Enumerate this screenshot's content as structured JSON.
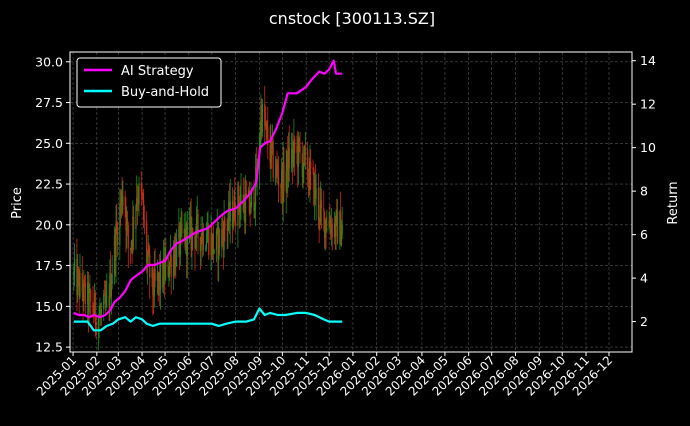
{
  "chart_data": {
    "type": "line",
    "title": "cnstock [300113.SZ]",
    "ylabel_left": "Price",
    "ylabel_right": "Return",
    "xlim": [
      "2024-12-28",
      "2026-12-31"
    ],
    "ylim_left": [
      12.2,
      30.6
    ],
    "ylim_right": [
      0.6,
      14.4
    ],
    "x_ticks": [
      "2025-01",
      "2025-02",
      "2025-03",
      "2025-04",
      "2025-05",
      "2025-06",
      "2025-07",
      "2025-08",
      "2025-09",
      "2025-10",
      "2025-11",
      "2025-12",
      "2026-01",
      "2026-02",
      "2026-03",
      "2026-04",
      "2026-05",
      "2026-06",
      "2026-07",
      "2026-08",
      "2026-09",
      "2026-10",
      "2026-11",
      "2026-12"
    ],
    "y_ticks_left": [
      12.5,
      15.0,
      17.5,
      20.0,
      22.5,
      25.0,
      27.5,
      30.0
    ],
    "y_ticks_right": [
      2,
      4,
      6,
      8,
      10,
      12,
      14
    ],
    "grid": true,
    "legend_position": "top-left",
    "series": [
      {
        "name": "AI Strategy",
        "axis": "right",
        "color": "#ff00ff",
        "points": [
          [
            "2025-01-02",
            2.4
          ],
          [
            "2025-01-08",
            2.3
          ],
          [
            "2025-01-15",
            2.3
          ],
          [
            "2025-01-22",
            2.2
          ],
          [
            "2025-01-28",
            2.3
          ],
          [
            "2025-02-05",
            2.2
          ],
          [
            "2025-02-12",
            2.3
          ],
          [
            "2025-02-18",
            2.5
          ],
          [
            "2025-02-24",
            2.9
          ],
          [
            "2025-03-03",
            3.1
          ],
          [
            "2025-03-10",
            3.4
          ],
          [
            "2025-03-17",
            3.9
          ],
          [
            "2025-03-24",
            4.1
          ],
          [
            "2025-04-01",
            4.3
          ],
          [
            "2025-04-09",
            4.6
          ],
          [
            "2025-04-17",
            4.6
          ],
          [
            "2025-04-24",
            4.7
          ],
          [
            "2025-05-01",
            4.8
          ],
          [
            "2025-05-09",
            5.3
          ],
          [
            "2025-05-16",
            5.6
          ],
          [
            "2025-05-23",
            5.7
          ],
          [
            "2025-06-01",
            5.9
          ],
          [
            "2025-06-10",
            6.1
          ],
          [
            "2025-06-18",
            6.2
          ],
          [
            "2025-06-26",
            6.3
          ],
          [
            "2025-07-05",
            6.6
          ],
          [
            "2025-07-14",
            6.9
          ],
          [
            "2025-07-22",
            7.1
          ],
          [
            "2025-08-01",
            7.2
          ],
          [
            "2025-08-10",
            7.5
          ],
          [
            "2025-08-20",
            7.9
          ],
          [
            "2025-08-28",
            8.4
          ],
          [
            "2025-09-02",
            10.0
          ],
          [
            "2025-09-08",
            10.2
          ],
          [
            "2025-09-15",
            10.3
          ],
          [
            "2025-09-22",
            10.8
          ],
          [
            "2025-10-01",
            11.6
          ],
          [
            "2025-10-08",
            12.5
          ],
          [
            "2025-10-20",
            12.5
          ],
          [
            "2025-11-01",
            12.8
          ],
          [
            "2025-11-10",
            13.2
          ],
          [
            "2025-11-18",
            13.5
          ],
          [
            "2025-11-25",
            13.4
          ],
          [
            "2025-12-01",
            13.6
          ],
          [
            "2025-12-07",
            14.0
          ],
          [
            "2025-12-10",
            13.4
          ],
          [
            "2025-12-18",
            13.4
          ]
        ]
      },
      {
        "name": "Buy-and-Hold",
        "axis": "right",
        "color": "#00ffff",
        "points": [
          [
            "2025-01-02",
            2.0
          ],
          [
            "2025-01-10",
            2.0
          ],
          [
            "2025-01-20",
            2.0
          ],
          [
            "2025-01-28",
            1.6
          ],
          [
            "2025-02-06",
            1.6
          ],
          [
            "2025-02-14",
            1.8
          ],
          [
            "2025-02-22",
            1.9
          ],
          [
            "2025-03-01",
            2.1
          ],
          [
            "2025-03-10",
            2.2
          ],
          [
            "2025-03-17",
            2.0
          ],
          [
            "2025-03-24",
            2.2
          ],
          [
            "2025-04-01",
            2.1
          ],
          [
            "2025-04-07",
            1.9
          ],
          [
            "2025-04-15",
            1.8
          ],
          [
            "2025-04-24",
            1.9
          ],
          [
            "2025-05-05",
            1.9
          ],
          [
            "2025-05-16",
            1.9
          ],
          [
            "2025-06-01",
            1.9
          ],
          [
            "2025-06-15",
            1.9
          ],
          [
            "2025-07-01",
            1.9
          ],
          [
            "2025-07-10",
            1.8
          ],
          [
            "2025-07-20",
            1.9
          ],
          [
            "2025-08-01",
            2.0
          ],
          [
            "2025-08-15",
            2.0
          ],
          [
            "2025-08-25",
            2.1
          ],
          [
            "2025-09-01",
            2.6
          ],
          [
            "2025-09-08",
            2.3
          ],
          [
            "2025-09-15",
            2.4
          ],
          [
            "2025-09-25",
            2.3
          ],
          [
            "2025-10-05",
            2.3
          ],
          [
            "2025-10-20",
            2.4
          ],
          [
            "2025-11-01",
            2.4
          ],
          [
            "2025-11-12",
            2.3
          ],
          [
            "2025-11-24",
            2.1
          ],
          [
            "2025-12-01",
            2.0
          ],
          [
            "2025-12-10",
            2.0
          ],
          [
            "2025-12-18",
            2.0
          ]
        ]
      }
    ]
  },
  "price_candles": {
    "axis": "left",
    "up_color": "#1a8f1a",
    "down_color": "#d02a10",
    "anchors": [
      [
        "2025-01-02",
        16.8
      ],
      [
        "2025-01-12",
        16.0
      ],
      [
        "2025-01-22",
        15.2
      ],
      [
        "2025-02-05",
        14.3
      ],
      [
        "2025-02-15",
        15.0
      ],
      [
        "2025-02-25",
        19.0
      ],
      [
        "2025-03-08",
        22.5
      ],
      [
        "2025-03-15",
        18.0
      ],
      [
        "2025-03-25",
        22.0
      ],
      [
        "2025-04-01",
        21.5
      ],
      [
        "2025-04-07",
        18.0
      ],
      [
        "2025-04-15",
        16.0
      ],
      [
        "2025-04-25",
        16.6
      ],
      [
        "2025-05-10",
        18.0
      ],
      [
        "2025-05-25",
        19.2
      ],
      [
        "2025-06-10",
        19.5
      ],
      [
        "2025-06-25",
        19.5
      ],
      [
        "2025-07-05",
        18.5
      ],
      [
        "2025-07-20",
        20.0
      ],
      [
        "2025-08-05",
        21.5
      ],
      [
        "2025-08-20",
        21.0
      ],
      [
        "2025-08-30",
        23.0
      ],
      [
        "2025-09-03",
        27.0
      ],
      [
        "2025-09-10",
        25.5
      ],
      [
        "2025-09-20",
        23.5
      ],
      [
        "2025-10-01",
        22.5
      ],
      [
        "2025-10-10",
        24.0
      ],
      [
        "2025-10-20",
        24.5
      ],
      [
        "2025-11-01",
        23.5
      ],
      [
        "2025-11-10",
        22.5
      ],
      [
        "2025-11-20",
        20.5
      ],
      [
        "2025-12-01",
        20.2
      ],
      [
        "2025-12-10",
        19.8
      ],
      [
        "2025-12-18",
        19.8
      ]
    ]
  }
}
